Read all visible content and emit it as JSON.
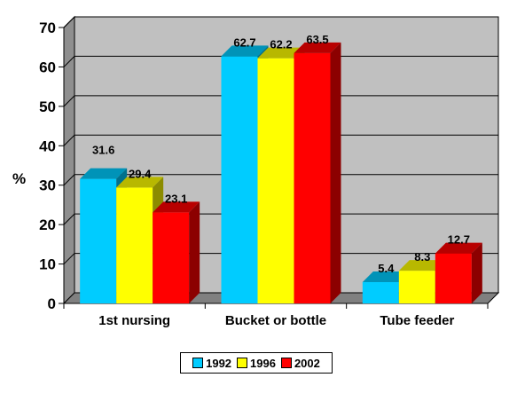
{
  "chart_data": {
    "type": "bar",
    "ylabel": "%",
    "ylim": [
      0,
      70
    ],
    "yticks": [
      0,
      10,
      20,
      30,
      40,
      50,
      60,
      70
    ],
    "grid": true,
    "legend": "bottom-center",
    "categories": [
      "1st nursing",
      "Bucket or bottle",
      "Tube feeder"
    ],
    "series": [
      {
        "name": "1992",
        "color": "#00ccff",
        "values": [
          31.6,
          62.7,
          5.4
        ]
      },
      {
        "name": "1996",
        "color": "#ffff00",
        "values": [
          29.4,
          62.2,
          8.3
        ]
      },
      {
        "name": "2002",
        "color": "#ff0000",
        "values": [
          23.1,
          63.5,
          12.7
        ]
      }
    ],
    "plot_background": "#c0c0c0"
  }
}
